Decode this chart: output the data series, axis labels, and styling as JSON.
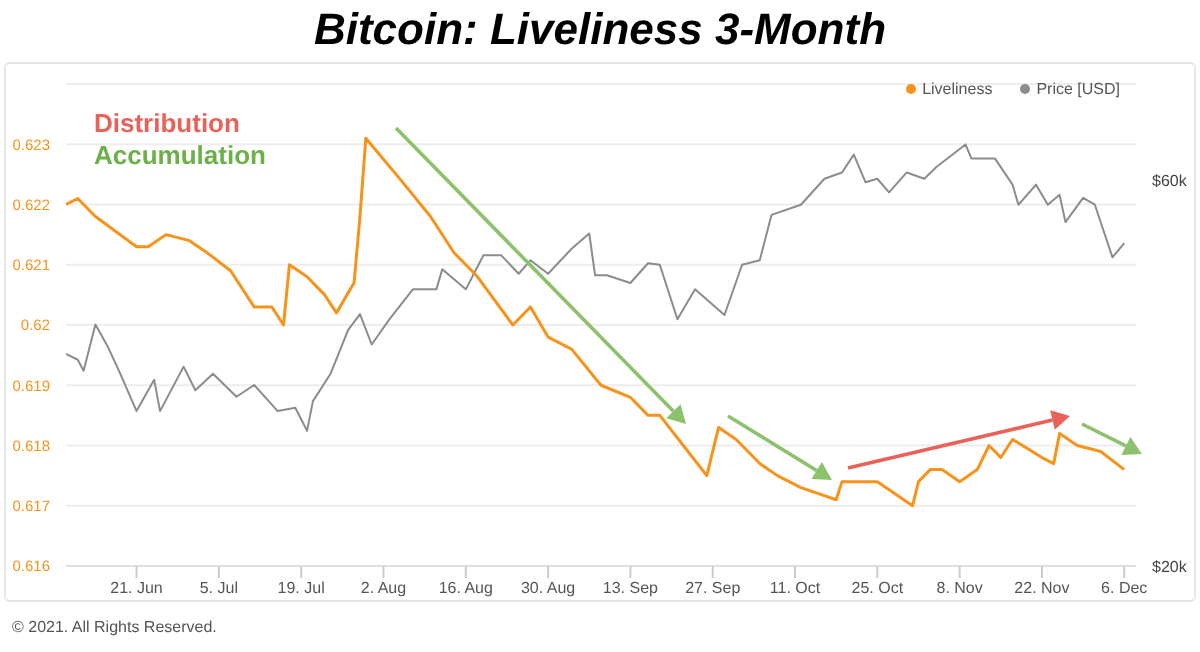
{
  "chart_data": {
    "type": "line",
    "title": "Bitcoin: Liveliness 3-Month",
    "annotations": [
      "Distribution",
      "Accumulation",
      "© 2021. All Rights Reserved."
    ],
    "xlim": [
      "2021-06-09",
      "2021-12-08"
    ],
    "xticks": [
      {
        "value": "2021-06-21",
        "label": "21. Jun"
      },
      {
        "value": "2021-07-05",
        "label": "5. Jul"
      },
      {
        "value": "2021-07-19",
        "label": "19. Jul"
      },
      {
        "value": "2021-08-02",
        "label": "2. Aug"
      },
      {
        "value": "2021-08-16",
        "label": "16. Aug"
      },
      {
        "value": "2021-08-30",
        "label": "30. Aug"
      },
      {
        "value": "2021-09-13",
        "label": "13. Sep"
      },
      {
        "value": "2021-09-27",
        "label": "27. Sep"
      },
      {
        "value": "2021-10-11",
        "label": "11. Oct"
      },
      {
        "value": "2021-10-25",
        "label": "25. Oct"
      },
      {
        "value": "2021-11-08",
        "label": "8. Nov"
      },
      {
        "value": "2021-11-22",
        "label": "22. Nov"
      },
      {
        "value": "2021-12-06",
        "label": "6. Dec"
      }
    ],
    "ylim": [
      0.616,
      0.624
    ],
    "yticks": [
      0.616,
      0.617,
      0.618,
      0.619,
      0.62,
      0.621,
      0.622,
      0.623
    ],
    "y2lim": [
      20000,
      79000
    ],
    "y2ticks": [
      {
        "value": 20000,
        "label": "$20k"
      },
      {
        "value": 60000,
        "label": "$60k"
      }
    ],
    "log": "y2",
    "grid": "y",
    "legend": "top right",
    "marker": "none",
    "line_style": "solid",
    "series": [
      {
        "name": "Liveliness",
        "color": "#f7931a",
        "x": [
          "2021-06-09",
          "2021-06-11",
          "2021-06-14",
          "2021-06-21",
          "2021-06-23",
          "2021-06-26",
          "2021-06-30",
          "2021-07-03",
          "2021-07-07",
          "2021-07-11",
          "2021-07-14",
          "2021-07-16",
          "2021-07-17",
          "2021-07-20",
          "2021-07-23",
          "2021-07-25",
          "2021-07-28",
          "2021-07-29",
          "2021-07-30",
          "2021-08-05",
          "2021-08-10",
          "2021-08-14",
          "2021-08-18",
          "2021-08-24",
          "2021-08-27",
          "2021-08-30",
          "2021-09-03",
          "2021-09-08",
          "2021-09-13",
          "2021-09-16",
          "2021-09-18",
          "2021-09-22",
          "2021-09-26",
          "2021-09-28",
          "2021-10-01",
          "2021-10-05",
          "2021-10-08",
          "2021-10-12",
          "2021-10-15",
          "2021-10-18",
          "2021-10-19",
          "2021-10-21",
          "2021-10-25",
          "2021-10-31",
          "2021-11-01",
          "2021-11-03",
          "2021-11-05",
          "2021-11-08",
          "2021-11-11",
          "2021-11-13",
          "2021-11-15",
          "2021-11-17",
          "2021-11-22",
          "2021-11-24",
          "2021-11-25",
          "2021-11-28",
          "2021-12-02",
          "2021-12-06"
        ],
        "values": [
          0.622,
          0.6221,
          0.6218,
          0.6213,
          0.6213,
          0.6215,
          0.6214,
          0.6212,
          0.6209,
          0.6203,
          0.6203,
          0.62,
          0.621,
          0.6208,
          0.6205,
          0.6202,
          0.6207,
          0.6218,
          0.6231,
          0.6224,
          0.6218,
          0.6212,
          0.6208,
          0.62,
          0.6203,
          0.6198,
          0.6196,
          0.619,
          0.6188,
          0.6185,
          0.6185,
          0.618,
          0.6175,
          0.6183,
          0.6181,
          0.6177,
          0.6175,
          0.6173,
          0.6172,
          0.6171,
          0.6174,
          0.6174,
          0.6174,
          0.617,
          0.6174,
          0.6176,
          0.6176,
          0.6174,
          0.6176,
          0.618,
          0.6178,
          0.6181,
          0.6178,
          0.6177,
          0.6182,
          0.618,
          0.6179,
          0.6176
        ]
      },
      {
        "name": "Price [USD]",
        "color": "#8c8c8c",
        "axis": "y2",
        "x": [
          "2021-06-09",
          "2021-06-11",
          "2021-06-12",
          "2021-06-14",
          "2021-06-16",
          "2021-06-18",
          "2021-06-21",
          "2021-06-24",
          "2021-06-25",
          "2021-06-29",
          "2021-07-01",
          "2021-07-04",
          "2021-07-08",
          "2021-07-11",
          "2021-07-15",
          "2021-07-18",
          "2021-07-20",
          "2021-07-21",
          "2021-07-24",
          "2021-07-27",
          "2021-07-29",
          "2021-07-31",
          "2021-08-03",
          "2021-08-07",
          "2021-08-11",
          "2021-08-12",
          "2021-08-16",
          "2021-08-19",
          "2021-08-22",
          "2021-08-25",
          "2021-08-27",
          "2021-08-30",
          "2021-09-03",
          "2021-09-06",
          "2021-09-07",
          "2021-09-09",
          "2021-09-13",
          "2021-09-16",
          "2021-09-18",
          "2021-09-21",
          "2021-09-24",
          "2021-09-29",
          "2021-10-02",
          "2021-10-05",
          "2021-10-07",
          "2021-10-12",
          "2021-10-16",
          "2021-10-19",
          "2021-10-21",
          "2021-10-23",
          "2021-10-25",
          "2021-10-27",
          "2021-10-30",
          "2021-11-02",
          "2021-11-04",
          "2021-11-09",
          "2021-11-10",
          "2021-11-14",
          "2021-11-17",
          "2021-11-18",
          "2021-11-21",
          "2021-11-23",
          "2021-11-25",
          "2021-11-26",
          "2021-11-29",
          "2021-12-01",
          "2021-12-04",
          "2021-12-06"
        ],
        "values": [
          36600,
          36000,
          34900,
          39800,
          37500,
          34900,
          31100,
          34000,
          31100,
          35300,
          33000,
          34600,
          32400,
          33500,
          31100,
          31400,
          29400,
          32000,
          34600,
          39200,
          41000,
          37600,
          40400,
          44000,
          44000,
          46600,
          44000,
          48500,
          48500,
          46000,
          47800,
          46000,
          49400,
          51600,
          45800,
          45800,
          44800,
          47400,
          47200,
          40400,
          44000,
          40900,
          47200,
          47800,
          54400,
          56000,
          60300,
          61400,
          64600,
          59700,
          60300,
          58000,
          61400,
          60300,
          62300,
          66500,
          63900,
          63900,
          59300,
          56000,
          59300,
          56000,
          57600,
          53300,
          57100,
          56000,
          48200,
          50200
        ]
      }
    ]
  }
}
